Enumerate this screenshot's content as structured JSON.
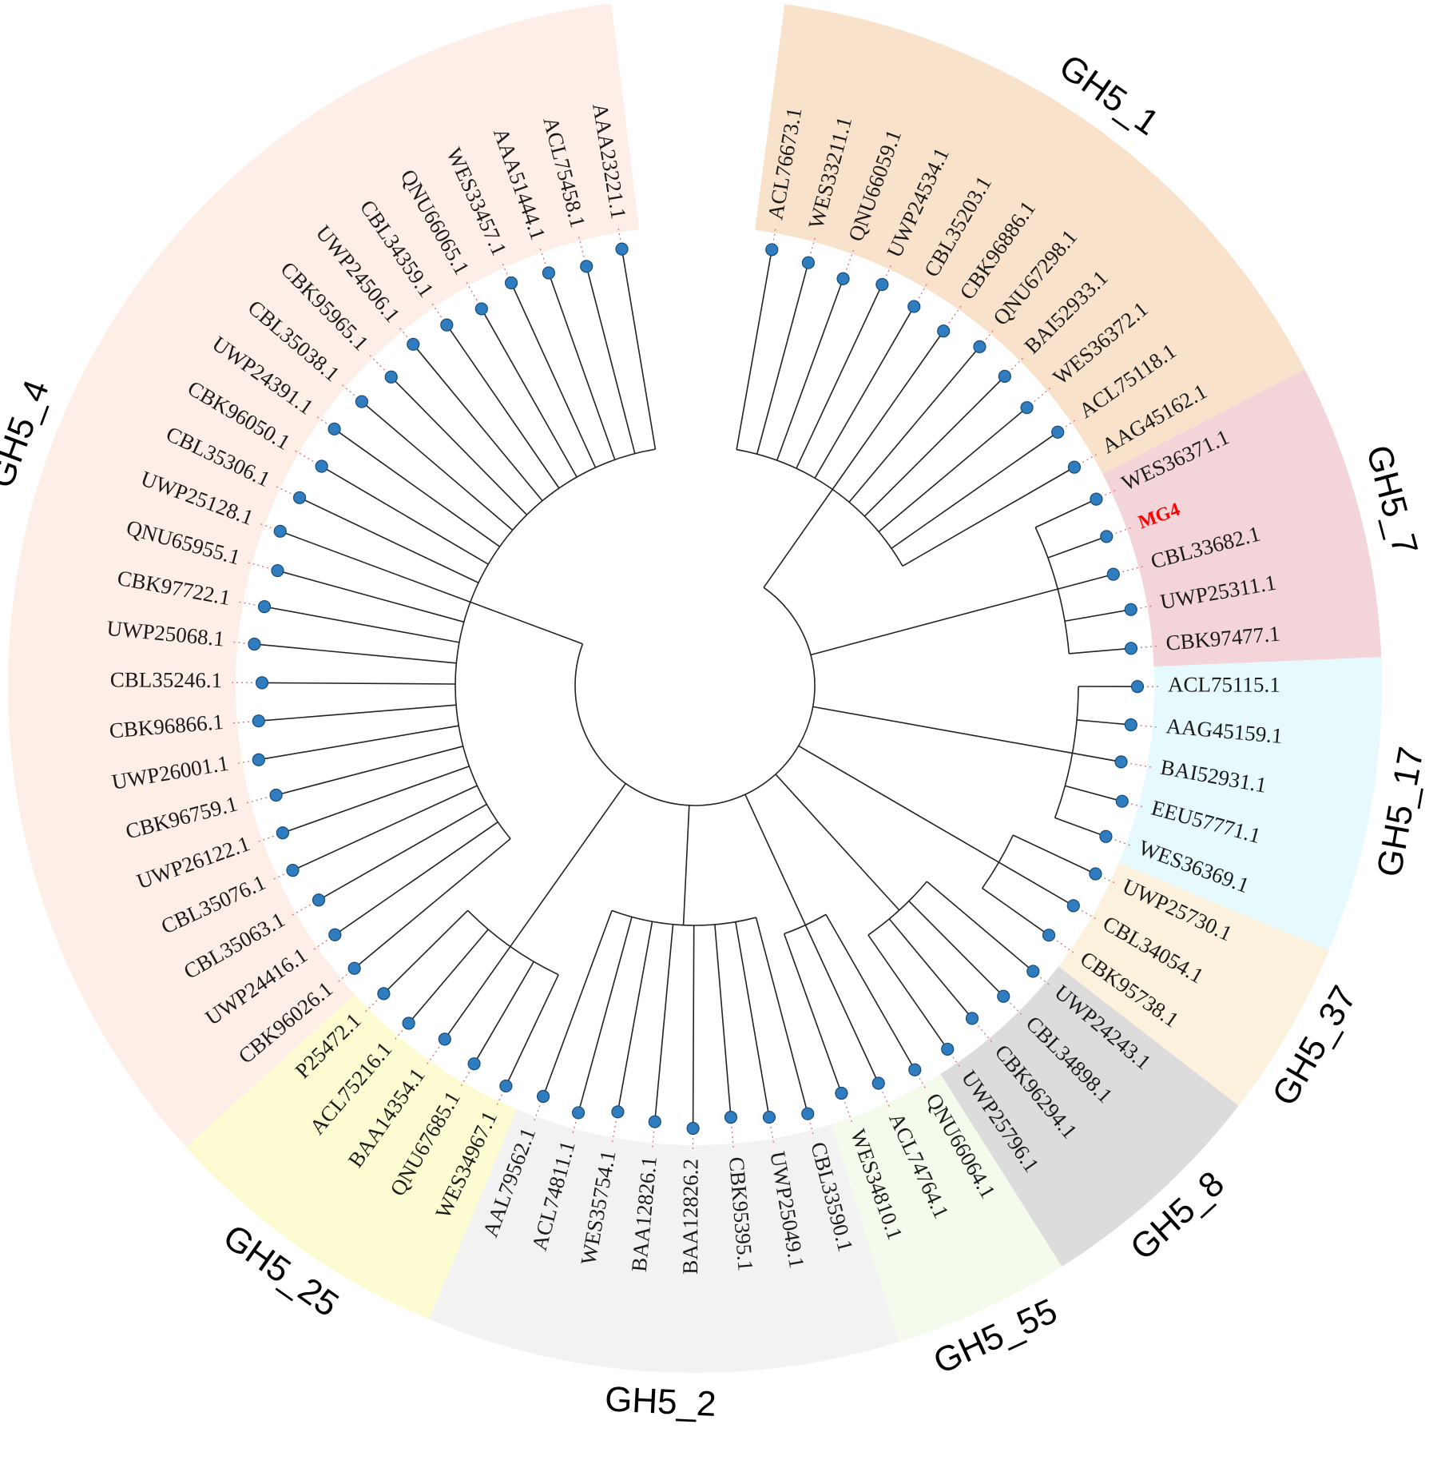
{
  "figure": {
    "type": "circular-phylogenetic-tree",
    "highlight_leaf": "MG4",
    "highlight_color": "#ff0000"
  },
  "clades": [
    {
      "name": "GH5_1",
      "color": "#f9e2cc",
      "leaves": [
        "ACL76673.1",
        "WES33211.1",
        "QNU66059.1",
        "UWP24534.1",
        "CBL35203.1",
        "CBK96886.1",
        "QNU67298.1",
        "BAI52933.1",
        "WES36372.1",
        "ACL75118.1",
        "AAG45162.1"
      ]
    },
    {
      "name": "GH5_7",
      "color": "#f3d4d8",
      "leaves": [
        "WES36371.1",
        "MG4",
        "CBL33682.1",
        "UWP25311.1",
        "CBK97477.1"
      ]
    },
    {
      "name": "GH5_17",
      "color": "#e6fafd",
      "leaves": [
        "ACL75115.1",
        "AAG45159.1",
        "BAI52931.1",
        "EEU57771.1",
        "WES36369.1"
      ]
    },
    {
      "name": "GH5_37",
      "color": "#fcf1dc",
      "leaves": [
        "UWP25730.1",
        "CBL34054.1",
        "CBK95738.1"
      ]
    },
    {
      "name": "GH5_8",
      "color": "#dcdcdc",
      "leaves": [
        "UWP24243.1",
        "CBL34898.1",
        "CBK96294.1",
        "UWP25796.1"
      ]
    },
    {
      "name": "GH5_55",
      "color": "#f4faec",
      "leaves": [
        "QNU66064.1",
        "ACL74764.1",
        "WES34810.1"
      ]
    },
    {
      "name": "GH5_2",
      "color": "#f2f2f2",
      "leaves": [
        "CBL33590.1",
        "UWP25049.1",
        "CBK95395.1",
        "BAA12826.2",
        "BAA12826.1",
        "WES35754.1",
        "ACL74811.1",
        "AAL79562.1"
      ]
    },
    {
      "name": "GH5_25",
      "color": "#fdfbd1",
      "leaves": [
        "WES34967.1",
        "QNU67685.1",
        "BAA14354.1",
        "ACL75216.1",
        "P25472.1"
      ]
    },
    {
      "name": "GH5_4",
      "color": "#fdefe8",
      "leaves": [
        "CBK96026.1",
        "UWP24416.1",
        "CBL35063.1",
        "CBL35076.1",
        "UWP26122.1",
        "CBK96759.1",
        "UWP26001.1",
        "CBK96866.1",
        "CBL35246.1",
        "UWP25068.1",
        "CBK97722.1",
        "QNU65955.1",
        "UWP25128.1",
        "CBL35306.1",
        "CBK96050.1",
        "UWP24391.1",
        "CBL35038.1",
        "CBK95965.1",
        "UWP24506.1",
        "CBL34359.1",
        "QNU66065.1",
        "WES33457.1",
        "AAA51444.1",
        "ACL75458.1",
        "AAA23221.1"
      ]
    }
  ]
}
